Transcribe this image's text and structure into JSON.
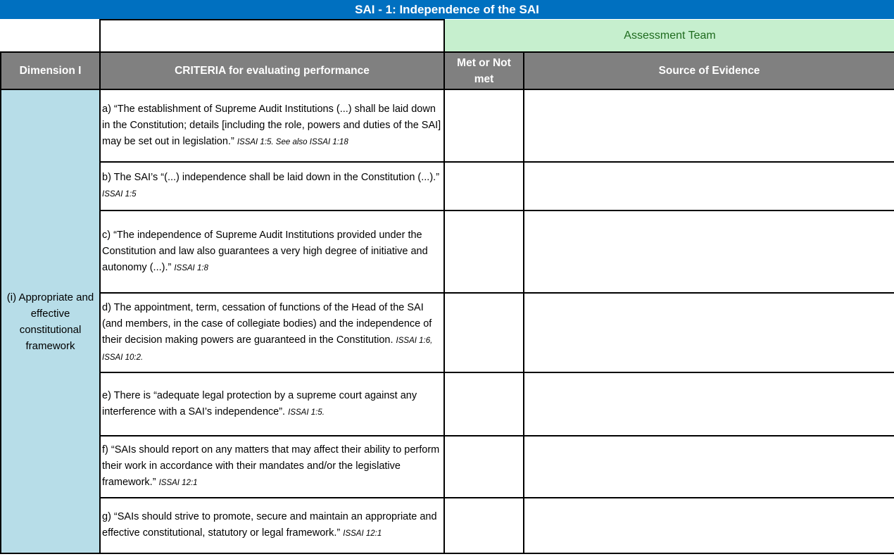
{
  "title": "SAI - 1: Independence of the SAI",
  "assessment_team": "Assessment Team",
  "headers": {
    "dimension": "Dimension I",
    "criteria": "CRITERIA for evaluating performance",
    "met": "Met or Not met",
    "evidence": "Source of Evidence"
  },
  "dimension_label": "(i) Appropriate and effective constitutional framework",
  "criteria": [
    {
      "text": "a) “The establishment of Supreme Audit Institutions (...) shall be laid down in the Constitution; details [including the role, powers and duties of the SAI] may be set out in legislation.” ",
      "ref": "ISSAI 1:5. See also ISSAI 1:18",
      "met": "",
      "evidence": ""
    },
    {
      "text": "b) The SAI’s “(...) independence shall be laid down in the Constitution (...).” ",
      "ref": "ISSAI 1:5",
      "met": "",
      "evidence": ""
    },
    {
      "text": "c) “The independence of Supreme Audit Institutions provided under the Constitution and law also guarantees a very high degree of initiative and autonomy (...).” ",
      "ref": "ISSAI 1:8",
      "met": "",
      "evidence": ""
    },
    {
      "text": "d) The appointment, term, cessation of functions of the Head of the SAI (and members, in the case of collegiate bodies) and the independence of their decision making powers are guaranteed in the Constitution. ",
      "ref": "ISSAI 1:6, ISSAI 10:2.",
      "met": "",
      "evidence": ""
    },
    {
      "text": " e) There is “adequate legal protection by a supreme court against any interference with a SAI’s independence”. ",
      "ref": "ISSAI 1:5.",
      "met": "",
      "evidence": ""
    },
    {
      "text": " f) “SAIs should report on any matters that may affect their ability to perform their work in accordance with their mandates and/or the legislative framework.” ",
      "ref": "ISSAI 12:1",
      "met": "",
      "evidence": ""
    },
    {
      "text": "g) “SAIs should strive to promote, secure and maintain an appropriate and effective constitutional, statutory or legal framework.” ",
      "ref": "ISSAI 12:1",
      "met": "",
      "evidence": ""
    }
  ]
}
